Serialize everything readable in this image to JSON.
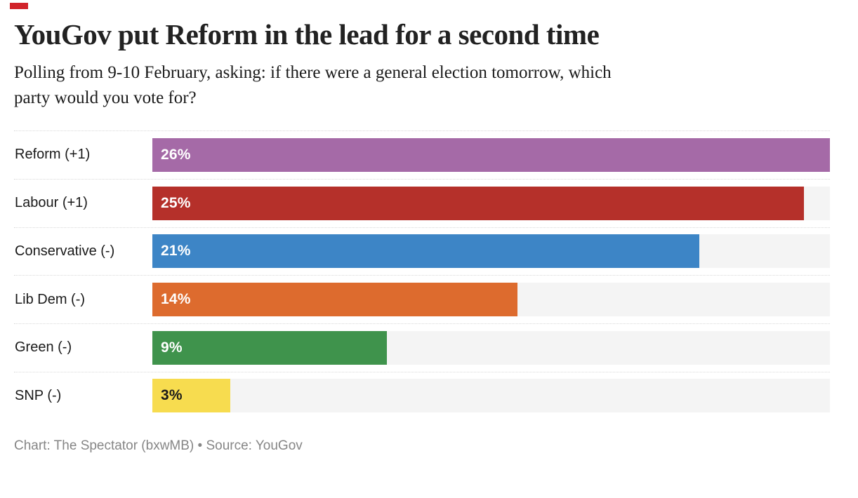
{
  "brand": {
    "mark_color": "#d1232a"
  },
  "header": {
    "title": "YouGov put Reform in the lead for a second time",
    "subtitle": "Polling from 9-10 February, asking: if there were a general election tomorrow, which\nparty would you vote for?"
  },
  "chart_data": {
    "type": "bar",
    "orientation": "horizontal",
    "title": "YouGov put Reform in the lead for a second time",
    "categories": [
      "Reform (+1)",
      "Labour (+1)",
      "Conservative (-)",
      "Lib Dem (-)",
      "Green (-)",
      "SNP (-)"
    ],
    "values": [
      26,
      25,
      21,
      14,
      9,
      3
    ],
    "value_labels": [
      "26%",
      "25%",
      "21%",
      "14%",
      "9%",
      "3%"
    ],
    "bar_colors": [
      "#a56aa7",
      "#b5302a",
      "#3d85c6",
      "#dd6b2e",
      "#3f934c",
      "#f7dc4f"
    ],
    "value_label_colors": [
      "#ffffff",
      "#ffffff",
      "#ffffff",
      "#ffffff",
      "#ffffff",
      "#1a1a1a"
    ],
    "track_color": "#f4f4f4",
    "xlabel": "",
    "ylabel": "",
    "xlim": [
      0,
      26
    ],
    "grid": false,
    "legend": false,
    "value_label_position": "inside-left"
  },
  "footer": {
    "text": "Chart: The Spectator (bxwMB) • Source: YouGov"
  }
}
